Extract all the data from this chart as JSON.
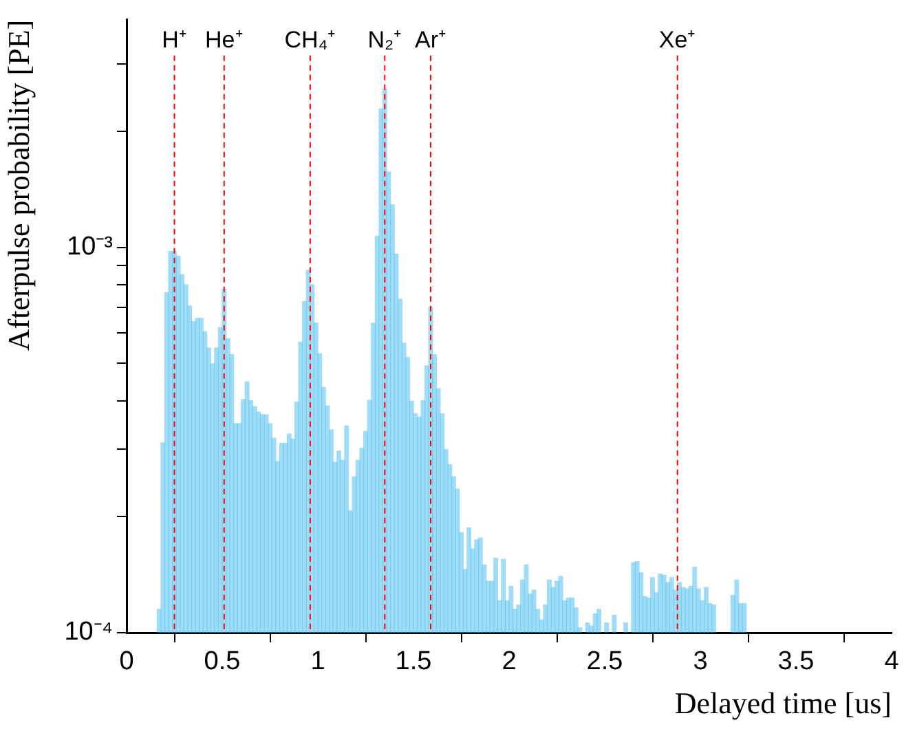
{
  "chart_data": {
    "type": "histogram",
    "xlabel": "Delayed time [us]",
    "ylabel": "Afterpulse probability [PE]",
    "color": "#5ec4f2",
    "bins": [
      0.16,
      0.18,
      0.2,
      0.22,
      0.24,
      0.26,
      0.28,
      0.3,
      0.32,
      0.34,
      0.36,
      0.38,
      0.4,
      0.42,
      0.44,
      0.46,
      0.48,
      0.5,
      0.52,
      0.54,
      0.56,
      0.58,
      0.6,
      0.62,
      0.64,
      0.66,
      0.68,
      0.7,
      0.72,
      0.74,
      0.76,
      0.78,
      0.8,
      0.82,
      0.84,
      0.86,
      0.88,
      0.9,
      0.92,
      0.94,
      0.96,
      0.98,
      1.0,
      1.02,
      1.04,
      1.06,
      1.08,
      1.1,
      1.12,
      1.14,
      1.16,
      1.18,
      1.2,
      1.22,
      1.24,
      1.26,
      1.28,
      1.3,
      1.32,
      1.34,
      1.36,
      1.38,
      1.4,
      1.42,
      1.44,
      1.46,
      1.48,
      1.5,
      1.52,
      1.54,
      1.56,
      1.58,
      1.6,
      1.62,
      1.64,
      1.66,
      1.68,
      1.7,
      1.72,
      1.74,
      1.76,
      1.78,
      1.8,
      1.82,
      1.84,
      1.86,
      1.88,
      1.9,
      1.92,
      1.94,
      1.96,
      1.98,
      2.0,
      2.02,
      2.04,
      2.06,
      2.08,
      2.1,
      2.12,
      2.14,
      2.16,
      2.18,
      2.2,
      2.22,
      2.24,
      2.26,
      2.28,
      2.3,
      2.32,
      2.34,
      2.36,
      2.38,
      2.4,
      2.42,
      2.44,
      2.46,
      2.48,
      2.5,
      2.52,
      2.54,
      2.56,
      2.58,
      2.6,
      2.62,
      2.64,
      2.66,
      2.68,
      2.7,
      2.72,
      2.74,
      2.76,
      2.78,
      2.8,
      2.82,
      2.84,
      2.86,
      2.88,
      2.9,
      2.92,
      2.94,
      2.96,
      2.98,
      3.0,
      3.02,
      3.04,
      3.06,
      3.08,
      3.1,
      3.12,
      3.14,
      3.16,
      3.18,
      3.2,
      3.22,
      3.24
    ],
    "values": [
      0.000115,
      0.000311,
      0.000764,
      0.000976,
      0.000976,
      0.00095,
      0.00085,
      0.0008,
      0.000705,
      0.000642,
      0.000655,
      0.000655,
      0.000604,
      0.000548,
      0.000499,
      0.000548,
      0.00062,
      0.00078,
      0.00058,
      0.000527,
      0.000349,
      0.000349,
      0.000403,
      0.000448,
      0.0004,
      0.000386,
      0.000374,
      0.000368,
      0.000368,
      0.000349,
      0.00032,
      0.000278,
      0.00031,
      0.00031,
      0.000328,
      0.000318,
      0.000397,
      0.000568,
      0.000723,
      0.000873,
      0.0008,
      0.000637,
      0.00053,
      0.000433,
      0.000388,
      0.000336,
      0.000277,
      0.000296,
      0.00028,
      0.000344,
      0.000207,
      0.000254,
      0.00028,
      0.000301,
      0.000333,
      0.000401,
      0.000636,
      0.00107,
      0.00229,
      0.00258,
      0.00157,
      0.00129,
      0.000962,
      0.000734,
      0.000564,
      0.000518,
      0.000399,
      0.00037,
      0.000363,
      0.0004,
      0.000493,
      0.0007,
      0.000527,
      0.00043,
      0.00037,
      0.000299,
      0.000273,
      0.000254,
      0.000236,
      0.000182,
      0.000146,
      0.000187,
      0.000165,
      0.000174,
      0.000176,
      0.00015,
      0.000136,
      0.000136,
      0.000156,
      0.000121,
      0.000155,
      0.000121,
      0.000132,
      0.000115,
      0.000118,
      0.000137,
      0.00015,
      0.000126,
      0.000129,
      0.000115,
      0.000108,
      0.000118,
      0.000137,
      0.000131,
      0.000136,
      0.00014,
      0.000121,
      0.000123,
      0.000123,
      0.000116,
      0.000103,
      null,
      0.000106,
      0.000104,
      0.000112,
      0.000115,
      null,
      0.000106,
      null,
      0.000111,
      null,
      null,
      0.000106,
      null,
      0.000152,
      0.000153,
      0.000143,
      0.000124,
      0.000123,
      0.000139,
      0.000127,
      0.000142,
      0.000141,
      0.000135,
      0.000139,
      0.000129,
      0.000135,
      0.000131,
      0.00013,
      0.000132,
      0.000148,
      0.00013,
      0.000121,
      0.000131,
      0.000119,
      0.000118,
      null,
      null,
      null,
      null,
      0.000125,
      0.000137,
      0.000119,
      0.000119
    ],
    "log": "y",
    "xlim": [
      0,
      4
    ],
    "xticks": [
      0,
      0.5,
      1,
      1.5,
      2,
      2.5,
      3,
      3.5,
      4
    ],
    "ylim": [
      0.0001,
      0.0039
    ],
    "yticks": [
      {
        "value": 0.0001,
        "label": "10⁻⁴"
      },
      {
        "value": 0.0002,
        "label": null
      },
      {
        "value": 0.0003,
        "label": null
      },
      {
        "value": 0.0004,
        "label": null
      },
      {
        "value": 0.0005,
        "label": null
      },
      {
        "value": 0.0006,
        "label": null
      },
      {
        "value": 0.0007,
        "label": null
      },
      {
        "value": 0.0008,
        "label": null
      },
      {
        "value": 0.0009,
        "label": null
      },
      {
        "value": 0.001,
        "label": "10⁻³"
      },
      {
        "value": 0.002,
        "label": null
      },
      {
        "value": 0.003,
        "label": null
      }
    ],
    "ref_lines": [
      {
        "axis": "x",
        "value": 0.25,
        "label": "H⁺",
        "color": "#ff0000",
        "line_style": "dashed"
      },
      {
        "axis": "x",
        "value": 0.51,
        "label": "He⁺",
        "color": "#ff0000",
        "line_style": "dashed"
      },
      {
        "axis": "x",
        "value": 0.96,
        "label": "CH₄⁺",
        "color": "#ff0000",
        "line_style": "dashed"
      },
      {
        "axis": "x",
        "value": 1.35,
        "label": "N₂⁺",
        "color": "#ff0000",
        "line_style": "dashed"
      },
      {
        "axis": "x",
        "value": 1.59,
        "label": "Ar⁺",
        "color": "#ff0000",
        "line_style": "dashed"
      },
      {
        "axis": "x",
        "value": 2.88,
        "label": "Xe⁺",
        "color": "#ff0000",
        "line_style": "dashed"
      }
    ],
    "grid": false,
    "legend": false
  }
}
